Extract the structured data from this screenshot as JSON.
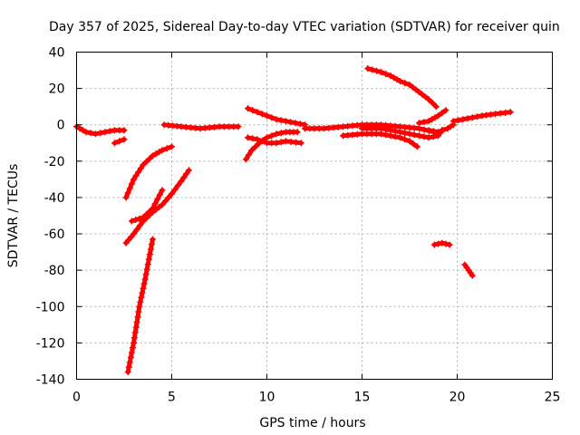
{
  "chart_data": {
    "type": "scatter",
    "title": "Day 357 of 2025, Sidereal Day-to-day VTEC variation (SDTVAR) for receiver quin",
    "xlabel": "GPS time / hours",
    "ylabel": "SDTVAR / TECUs",
    "xlim": [
      0,
      25
    ],
    "ylim": [
      -140,
      40
    ],
    "xticks": [
      "0",
      "5",
      "10",
      "15",
      "20",
      "25"
    ],
    "yticks": [
      "40",
      "20",
      "0",
      "-20",
      "-40",
      "-60",
      "-80",
      "-100",
      "-120",
      "-140"
    ],
    "xtick_values": [
      0,
      5,
      10,
      15,
      20,
      25
    ],
    "ytick_values": [
      40,
      20,
      0,
      -20,
      -40,
      -60,
      -80,
      -100,
      -120,
      -140
    ],
    "grid": true,
    "marker": "plus",
    "color": "#ff0000",
    "series": [
      {
        "x": [
          0.0,
          0.5,
          1.0,
          1.5,
          2.0,
          2.5
        ],
        "y": [
          -1,
          -4,
          -5,
          -4,
          -3,
          -3
        ]
      },
      {
        "x": [
          2.0,
          2.5
        ],
        "y": [
          -10,
          -8
        ]
      },
      {
        "x": [
          2.6,
          3.0,
          3.5,
          4.0,
          4.5,
          5.0
        ],
        "y": [
          -40,
          -30,
          -22,
          -17,
          -14,
          -12
        ]
      },
      {
        "x": [
          2.6,
          3.0,
          3.5,
          4.0,
          4.5,
          5.0,
          5.5,
          5.9
        ],
        "y": [
          -65,
          -60,
          -53,
          -48,
          -44,
          -38,
          -31,
          -25
        ]
      },
      {
        "x": [
          2.9,
          3.5,
          4.0,
          4.5
        ],
        "y": [
          -53,
          -51,
          -46,
          -36
        ]
      },
      {
        "x": [
          2.7,
          3.0,
          3.3,
          3.6,
          4.0
        ],
        "y": [
          -136,
          -120,
          -100,
          -85,
          -63
        ]
      },
      {
        "x": [
          4.6,
          5.5,
          6.5,
          7.5,
          8.5
        ],
        "y": [
          0,
          -1,
          -2,
          -1,
          -1
        ]
      },
      {
        "x": [
          9.0,
          9.5,
          10.0,
          10.5,
          11.0,
          11.5,
          12.0
        ],
        "y": [
          9,
          7,
          5,
          3,
          2,
          1,
          0
        ]
      },
      {
        "x": [
          8.9,
          9.2,
          9.6,
          10.0,
          10.5,
          11.0,
          11.6
        ],
        "y": [
          -19,
          -14,
          -10,
          -7,
          -5,
          -4,
          -4
        ]
      },
      {
        "x": [
          9.0,
          9.5,
          10.0,
          10.5,
          11.0,
          11.8
        ],
        "y": [
          -7,
          -8,
          -10,
          -10,
          -9,
          -10
        ]
      },
      {
        "x": [
          12.0,
          13.0,
          14.0,
          15.0,
          16.0,
          17.0,
          18.0,
          18.8
        ],
        "y": [
          -2,
          -2,
          -1,
          0,
          0,
          -1,
          -2,
          -4
        ]
      },
      {
        "x": [
          14.0,
          15.0,
          16.0,
          17.0,
          17.5,
          17.9
        ],
        "y": [
          -6,
          -5,
          -5,
          -7,
          -9,
          -12
        ]
      },
      {
        "x": [
          15.0,
          16.0,
          17.0,
          18.0,
          18.5,
          19.0,
          19.2
        ],
        "y": [
          -2,
          -2,
          -4,
          -6,
          -7,
          -6,
          -3
        ]
      },
      {
        "x": [
          15.3,
          16.0,
          16.5,
          17.0,
          17.5,
          18.0,
          18.5,
          18.9
        ],
        "y": [
          31,
          29,
          27,
          24,
          22,
          18,
          14,
          10
        ]
      },
      {
        "x": [
          18.0,
          18.5,
          19.0,
          19.4
        ],
        "y": [
          1,
          2,
          5,
          8
        ]
      },
      {
        "x": [
          18.5,
          19.0,
          19.5,
          19.8
        ],
        "y": [
          -3,
          -4,
          -2,
          0
        ]
      },
      {
        "x": [
          18.8,
          19.2,
          19.6
        ],
        "y": [
          -66,
          -65,
          -66
        ]
      },
      {
        "x": [
          20.4,
          20.6,
          20.8
        ],
        "y": [
          -77,
          -80,
          -83
        ]
      },
      {
        "x": [
          19.8,
          20.3,
          20.8,
          21.3,
          22.0,
          22.8
        ],
        "y": [
          2,
          3,
          4,
          5,
          6,
          7
        ]
      }
    ]
  }
}
